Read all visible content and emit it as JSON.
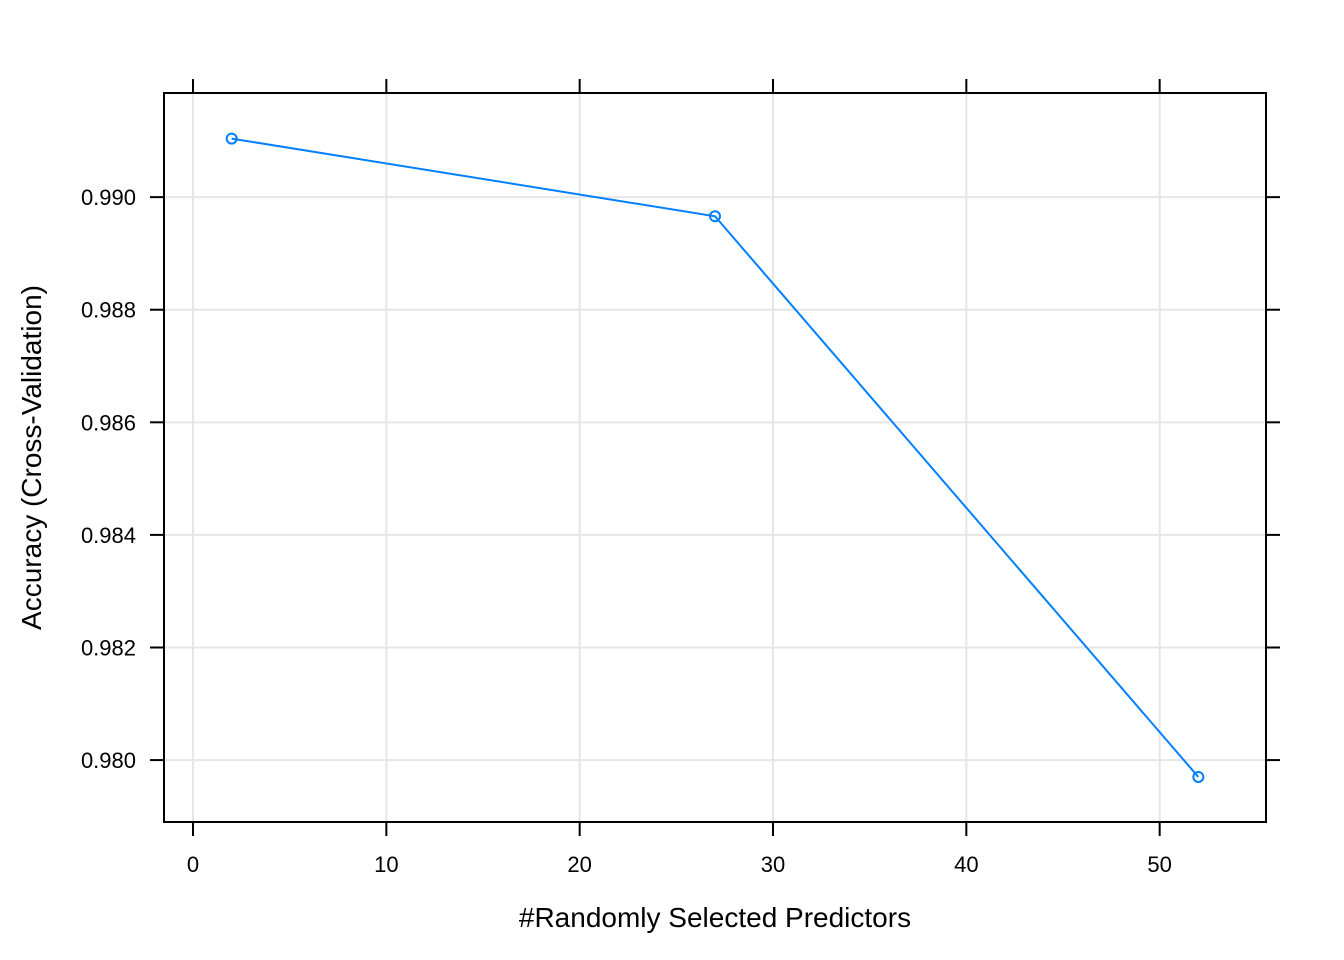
{
  "chart_data": {
    "type": "line",
    "title": "",
    "xlabel": "#Randomly Selected Predictors",
    "ylabel": "Accuracy (Cross-Validation)",
    "xlim": [
      -1.5,
      55.5
    ],
    "ylim": [
      0.9789,
      0.99185
    ],
    "x_ticks": [
      0,
      10,
      20,
      30,
      40,
      50
    ],
    "x_tick_labels": [
      "0",
      "10",
      "20",
      "30",
      "40",
      "50"
    ],
    "y_ticks": [
      0.98,
      0.982,
      0.984,
      0.986,
      0.988,
      0.99
    ],
    "y_tick_labels": [
      "0.980",
      "0.982",
      "0.984",
      "0.986",
      "0.988",
      "0.990"
    ],
    "grid": true,
    "series": [
      {
        "x": [
          2,
          27,
          52
        ],
        "values": [
          0.99104,
          0.98966,
          0.9797
        ],
        "color": "#0080ff",
        "marker": "open-circle"
      }
    ]
  }
}
